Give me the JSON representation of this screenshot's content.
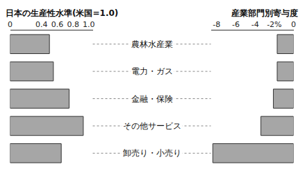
{
  "chart_data": {
    "type": "bar",
    "orientation": "horizontal",
    "categories": [
      "農林水産業",
      "電力・ガス",
      "金融・保険",
      "その他サービス",
      "卸売り・小売り"
    ],
    "series": [
      {
        "name": "日本の生産性水準(米国=1.0)",
        "color": "#a6a6a6",
        "values": [
          0.5,
          0.55,
          0.75,
          0.93,
          0.65
        ],
        "xlim": [
          0,
          1.05
        ],
        "xticks": [
          0,
          0.4,
          0.6,
          0.8,
          {
            "value": 1,
            "label": "1.0"
          }
        ]
      },
      {
        "name": "産業部門別寄与度",
        "color": "#a6a6a6",
        "values": [
          -1.7,
          -1.7,
          -2.1,
          -3.4,
          -8.4
        ],
        "xlim": [
          -8.6,
          0
        ],
        "xticks": [
          -8,
          -6,
          -4,
          {
            "value": -2,
            "label": "-2%"
          },
          0
        ]
      }
    ]
  }
}
